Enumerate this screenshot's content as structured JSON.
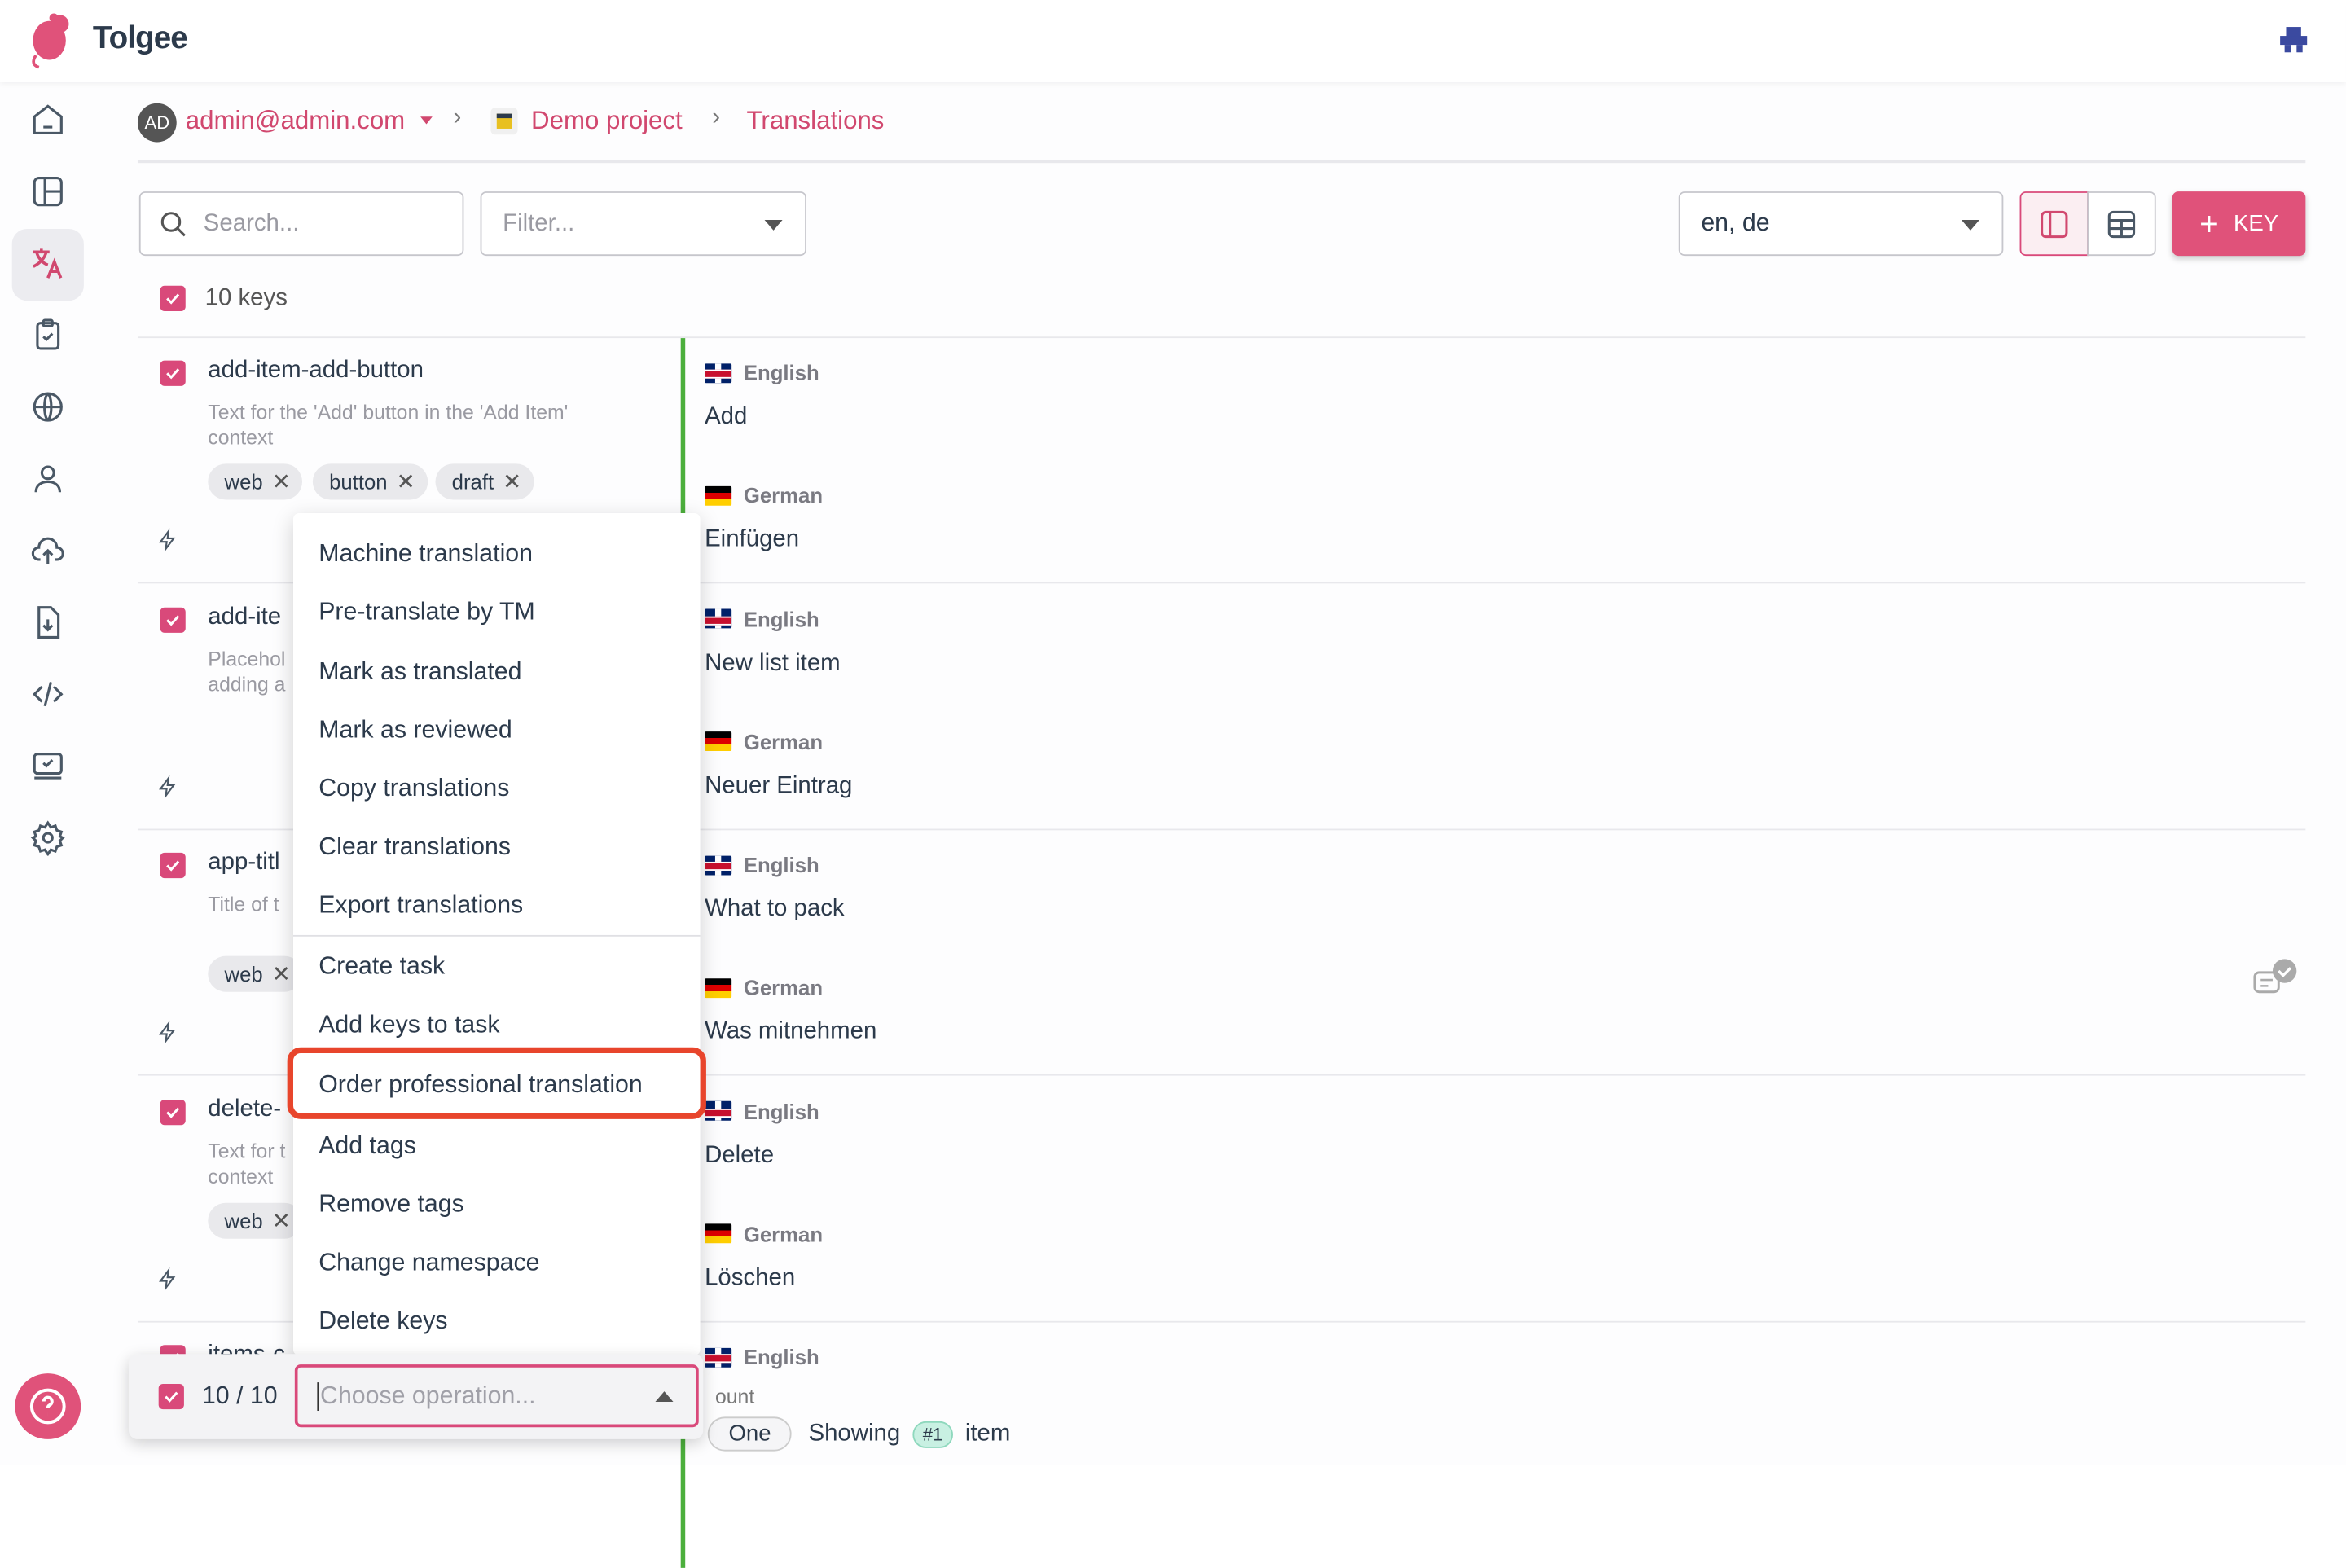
{
  "app": {
    "name": "Tolgee",
    "brand_color": "#d9497a"
  },
  "breadcrumb": {
    "avatar": "AD",
    "user": "admin@admin.com",
    "project": "Demo project",
    "page": "Translations"
  },
  "toolbar": {
    "search_placeholder": "Search...",
    "filter_placeholder": "Filter...",
    "languages": "en, de",
    "add_key_label": "KEY"
  },
  "sidebar": {
    "items": [
      "home",
      "dashboard",
      "translations",
      "tasks",
      "languages",
      "members",
      "import",
      "export",
      "integrate",
      "review",
      "settings"
    ],
    "active": "translations"
  },
  "list": {
    "count_label": "10 keys"
  },
  "rows": [
    {
      "key": "add-item-add-button",
      "desc1": "Text for the 'Add' button in the 'Add Item'",
      "desc2": "context",
      "tags": [
        "web",
        "button",
        "draft"
      ],
      "en_label": "English",
      "en": "Add",
      "de_label": "German",
      "de": "Einfügen"
    },
    {
      "key": "add-ite",
      "desc1": "Placehol",
      "desc2": "adding a",
      "tags": [],
      "en_label": "English",
      "en": "New list item",
      "de_label": "German",
      "de": "Neuer Eintrag"
    },
    {
      "key": "app-titl",
      "desc1": "Title of t",
      "desc2": "",
      "tags": [
        "web"
      ],
      "en_label": "English",
      "en": "What to pack",
      "de_label": "German",
      "de": "Was mitnehmen"
    },
    {
      "key": "delete-",
      "desc1": "Text for t",
      "desc2": "context",
      "tags": [
        "web"
      ],
      "en_label": "English",
      "en": "Delete",
      "de_label": "German",
      "de": "Löschen"
    },
    {
      "key": "items-c",
      "en_label": "English",
      "en_partial": "ount",
      "plural_chip": "One",
      "showing": "Showing",
      "badge": "#1",
      "item": "item"
    }
  ],
  "menu": {
    "items": [
      "Machine translation",
      "Pre-translate by TM",
      "Mark as translated",
      "Mark as reviewed",
      "Copy translations",
      "Clear translations",
      "Export translations",
      "Create task",
      "Add keys to task",
      "Order professional translation",
      "Add tags",
      "Remove tags",
      "Change namespace",
      "Delete keys"
    ],
    "highlighted": "Order professional translation"
  },
  "bottom_bar": {
    "selection": "10 / 10",
    "operation_placeholder": "Choose operation..."
  }
}
